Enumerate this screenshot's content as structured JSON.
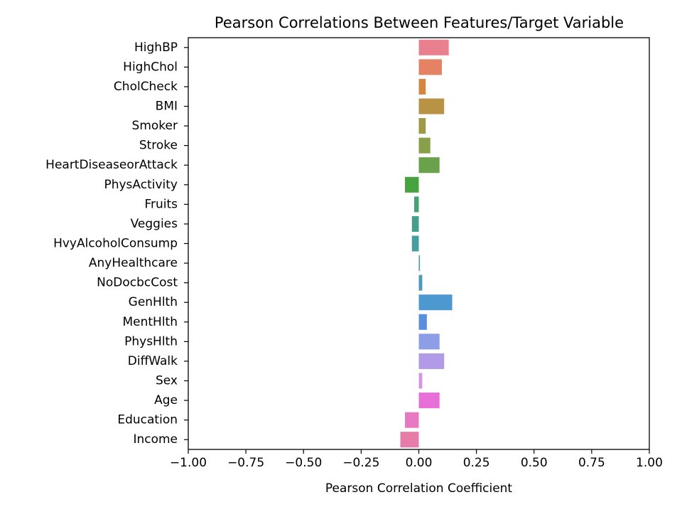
{
  "chart_data": {
    "type": "bar",
    "orientation": "horizontal",
    "title": "Pearson Correlations Between Features/Target Variable",
    "xlabel": "Pearson Correlation Coefficient",
    "ylabel": "",
    "xlim": [
      -1.0,
      1.0
    ],
    "xticks": [
      -1.0,
      -0.75,
      -0.5,
      -0.25,
      0.0,
      0.25,
      0.5,
      0.75,
      1.0
    ],
    "xtick_labels": [
      "−1.00",
      "−0.75",
      "−0.50",
      "−0.25",
      "0.00",
      "0.25",
      "0.50",
      "0.75",
      "1.00"
    ],
    "grid": false,
    "categories": [
      "HighBP",
      "HighChol",
      "CholCheck",
      "BMI",
      "Smoker",
      "Stroke",
      "HeartDiseaseorAttack",
      "PhysActivity",
      "Fruits",
      "Veggies",
      "HvyAlcoholConsump",
      "AnyHealthcare",
      "NoDocbcCost",
      "GenHlth",
      "MentHlth",
      "PhysHlth",
      "DiffWalk",
      "Sex",
      "Age",
      "Education",
      "Income"
    ],
    "values": [
      0.13,
      0.1,
      0.03,
      0.11,
      0.03,
      0.05,
      0.09,
      -0.06,
      -0.02,
      -0.03,
      -0.03,
      0.005,
      0.015,
      0.145,
      0.035,
      0.09,
      0.11,
      0.015,
      0.09,
      -0.06,
      -0.08
    ],
    "colors": [
      "#e8818d",
      "#e58264",
      "#d5873f",
      "#b89344",
      "#9f9947",
      "#89a04a",
      "#6aa24b",
      "#47a33f",
      "#46a176",
      "#469f8d",
      "#479da0",
      "#499baf",
      "#4b99c0",
      "#4c98cf",
      "#5a8fde",
      "#8d9ee7",
      "#b19ae8",
      "#d497e6",
      "#e76fd8",
      "#e778c2",
      "#e67da9"
    ]
  }
}
